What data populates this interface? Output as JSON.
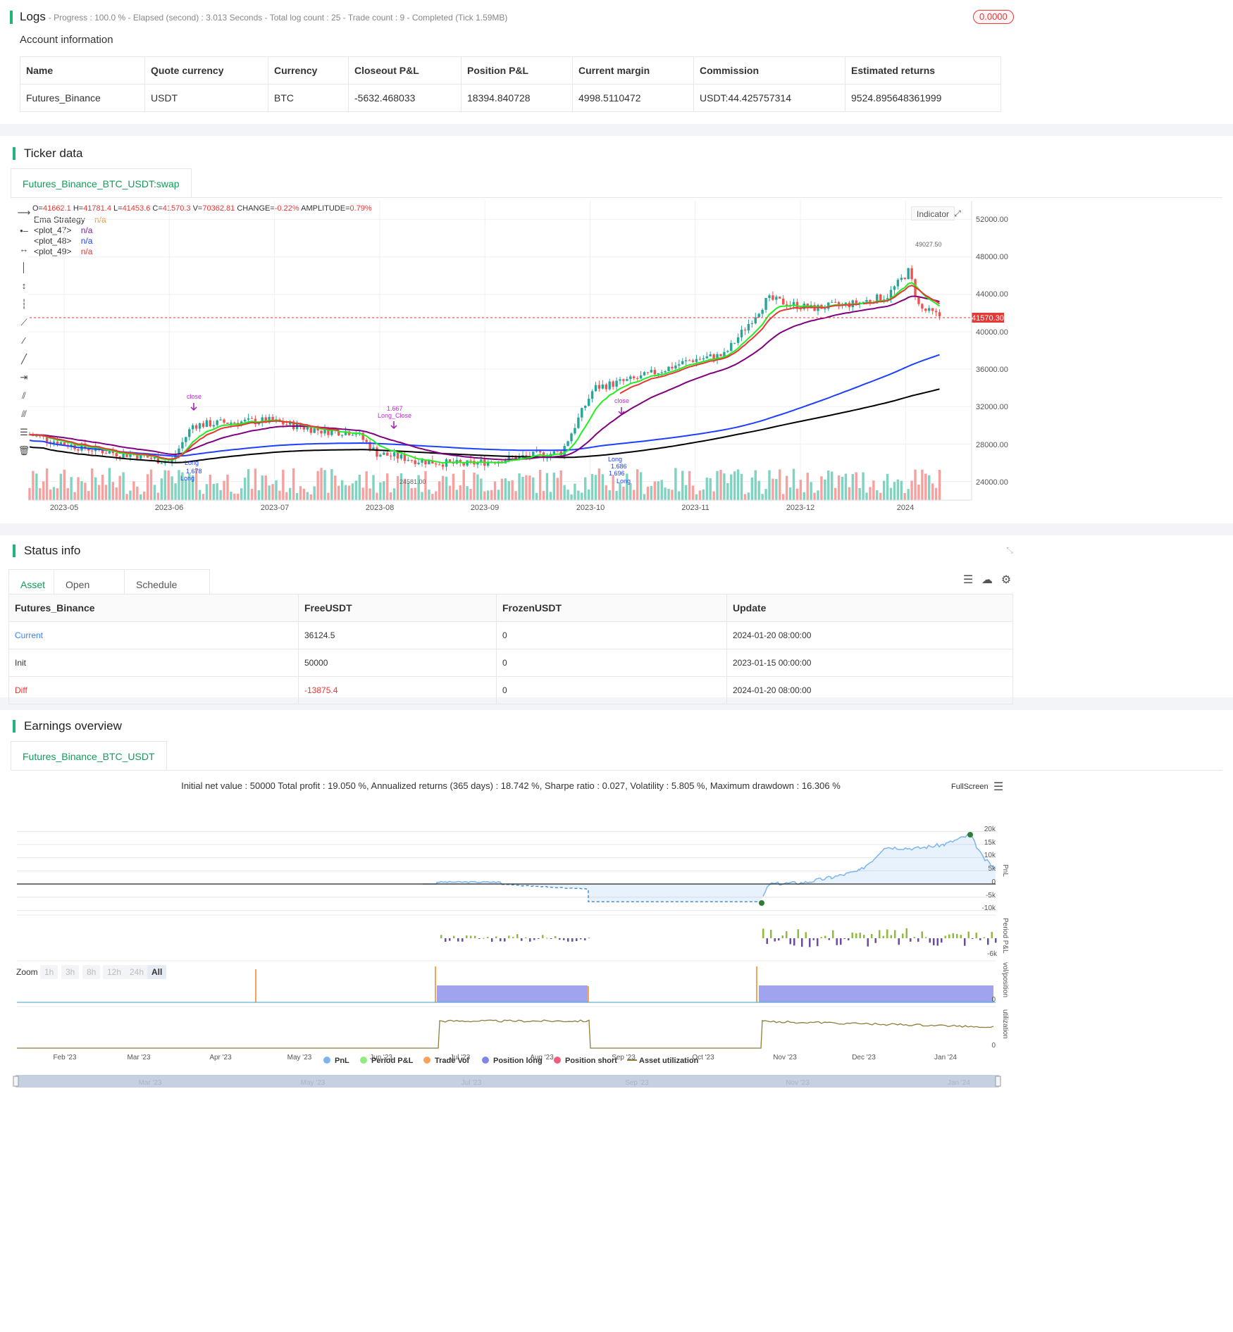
{
  "logs": {
    "title": "Logs",
    "summary": "- Progress : 100.0 % - Elapsed (second) : 3.013  Seconds - Total log count : 25 - Trade count : 9 - Completed (Tick 1.59MB)",
    "badge": "0.0000"
  },
  "account": {
    "title": "Account information",
    "headers": [
      "Name",
      "Quote currency",
      "Currency",
      "Closeout P&L",
      "Position P&L",
      "Current margin",
      "Commission",
      "Estimated returns"
    ],
    "row": [
      "Futures_Binance",
      "USDT",
      "BTC",
      "-5632.468033",
      "18394.840728",
      "4998.5110472",
      "USDT:44.425757314",
      "9524.895648361999"
    ]
  },
  "ticker": {
    "title": "Ticker data",
    "tab": "Futures_Binance_BTC_USDT:swap",
    "ohlc": {
      "o_label": "O=",
      "o": "41662.1",
      "h_label": "H=",
      "h": "41781.4",
      "l_label": "L=",
      "l": "41453.6",
      "c_label": "C=",
      "c": "41570.3",
      "v_label": "V=",
      "v": "70362.81",
      "change_label": "CHANGE=",
      "change": "-0.22%",
      "amp_label": "AMPLITUDE=",
      "amp": "0.79%"
    },
    "legend": [
      {
        "name": "Ema Strategy",
        "value": "n/a",
        "color": "#f7931a"
      },
      {
        "name": "<plot_47>",
        "value": "n/a",
        "color": "#7b1fa2"
      },
      {
        "name": "<plot_48>",
        "value": "n/a",
        "color": "#1e40ff"
      },
      {
        "name": "<plot_49>",
        "value": "n/a",
        "color": "#e53935"
      }
    ],
    "indicator_btn": "Indicator",
    "last_price": "41570.30",
    "high_marker": "49027.50",
    "low_marker": "24581.00",
    "y_ticks": [
      "52000.00",
      "48000.00",
      "44000.00",
      "40000.00",
      "36000.00",
      "32000.00",
      "28000.00",
      "24000.00"
    ],
    "x_ticks": [
      "2023-05",
      "2023-06",
      "2023-07",
      "2023-08",
      "2023-09",
      "2023-10",
      "2023-11",
      "2023-12",
      "2024"
    ],
    "annotations": [
      "close",
      "1.667",
      "Long_Close",
      "close",
      "Long",
      "1.678",
      "1.686",
      "Long",
      "Long",
      "1.696",
      "Long"
    ]
  },
  "status": {
    "title": "Status info",
    "tabs": [
      "Asset",
      "Open orders",
      "Schedule orders"
    ],
    "headers": [
      "Futures_Binance",
      "FreeUSDT",
      "FrozenUSDT",
      "Update"
    ],
    "rows": [
      {
        "label": "Current",
        "free": "36124.5",
        "frozen": "0",
        "update": "2024-01-20 08:00:00",
        "color": "#3b82f6"
      },
      {
        "label": "Init",
        "free": "50000",
        "frozen": "0",
        "update": "2023-01-15 00:00:00",
        "color": "#333333"
      },
      {
        "label": "Diff",
        "free": "-13875.4",
        "frozen": "0",
        "update": "2024-01-20 08:00:00",
        "color": "#e53935"
      }
    ]
  },
  "earnings": {
    "title": "Earnings overview",
    "tab": "Futures_Binance_BTC_USDT",
    "summary": "Initial net value : 50000 Total profit : 19.050 %, Annualized returns (365 days) : 18.742 %, Sharpe ratio : 0.027, Volatility : 5.805 %, Maximum drawdown : 16.306 %",
    "fullscreen": "FullScreen",
    "zoom_label": "Zoom",
    "zoom_buttons": [
      "1h",
      "3h",
      "8h",
      "12h",
      "24h",
      "All"
    ],
    "pnl_ticks": [
      "20k",
      "15k",
      "10k",
      "5k",
      "0",
      "-5k",
      "-10k"
    ],
    "axis_labels": {
      "pnl": "PnL",
      "period": "Period P&L",
      "vol": "vol/position",
      "util": "utilization"
    },
    "period_tick": "-6k",
    "vol_tick": "0",
    "util_tick": "0",
    "x_ticks": [
      "Feb '23",
      "Mar '23",
      "Apr '23",
      "May '23",
      "Jun '23",
      "Jul '23",
      "Aug '23",
      "Sep '23",
      "Oct '23",
      "Nov '23",
      "Dec '23",
      "Jan '24"
    ],
    "nav_ticks": [
      "Mar '23",
      "May '23",
      "Jul '23",
      "Sep '23",
      "Nov '23",
      "Jan '24"
    ],
    "legend": [
      {
        "name": "PnL",
        "color": "#7cb5ec"
      },
      {
        "name": "Period P&L",
        "color": "#90ed7d"
      },
      {
        "name": "Trade Vol",
        "color": "#f7a35c"
      },
      {
        "name": "Position long",
        "color": "#8085e9"
      },
      {
        "name": "Position short",
        "color": "#f15c80"
      },
      {
        "name": "Asset utilization",
        "color": "#8d7e3a"
      }
    ]
  },
  "chart_data": [
    {
      "type": "candlestick",
      "title": "",
      "x_range": [
        "2023-04-20",
        "2024-01-20"
      ],
      "ylim": [
        22000,
        54000
      ],
      "series": [
        {
          "name": "<plot_47>",
          "values": []
        },
        {
          "name": "<plot_48>",
          "values": []
        },
        {
          "name": "<plot_49>",
          "values": []
        }
      ],
      "last_close": 41570.3
    },
    {
      "type": "line",
      "title": "",
      "series_name": "PnL",
      "ylim": [
        -11000,
        21000
      ],
      "x": [
        "2023-01-15",
        "2023-06-15",
        "2023-07-20",
        "2023-08-25",
        "2023-10-25",
        "2023-11-10",
        "2023-12-15",
        "2024-01-06",
        "2024-01-20"
      ],
      "y": [
        0,
        0,
        800,
        -5000,
        -10500,
        0,
        7000,
        19000,
        5000
      ]
    }
  ]
}
